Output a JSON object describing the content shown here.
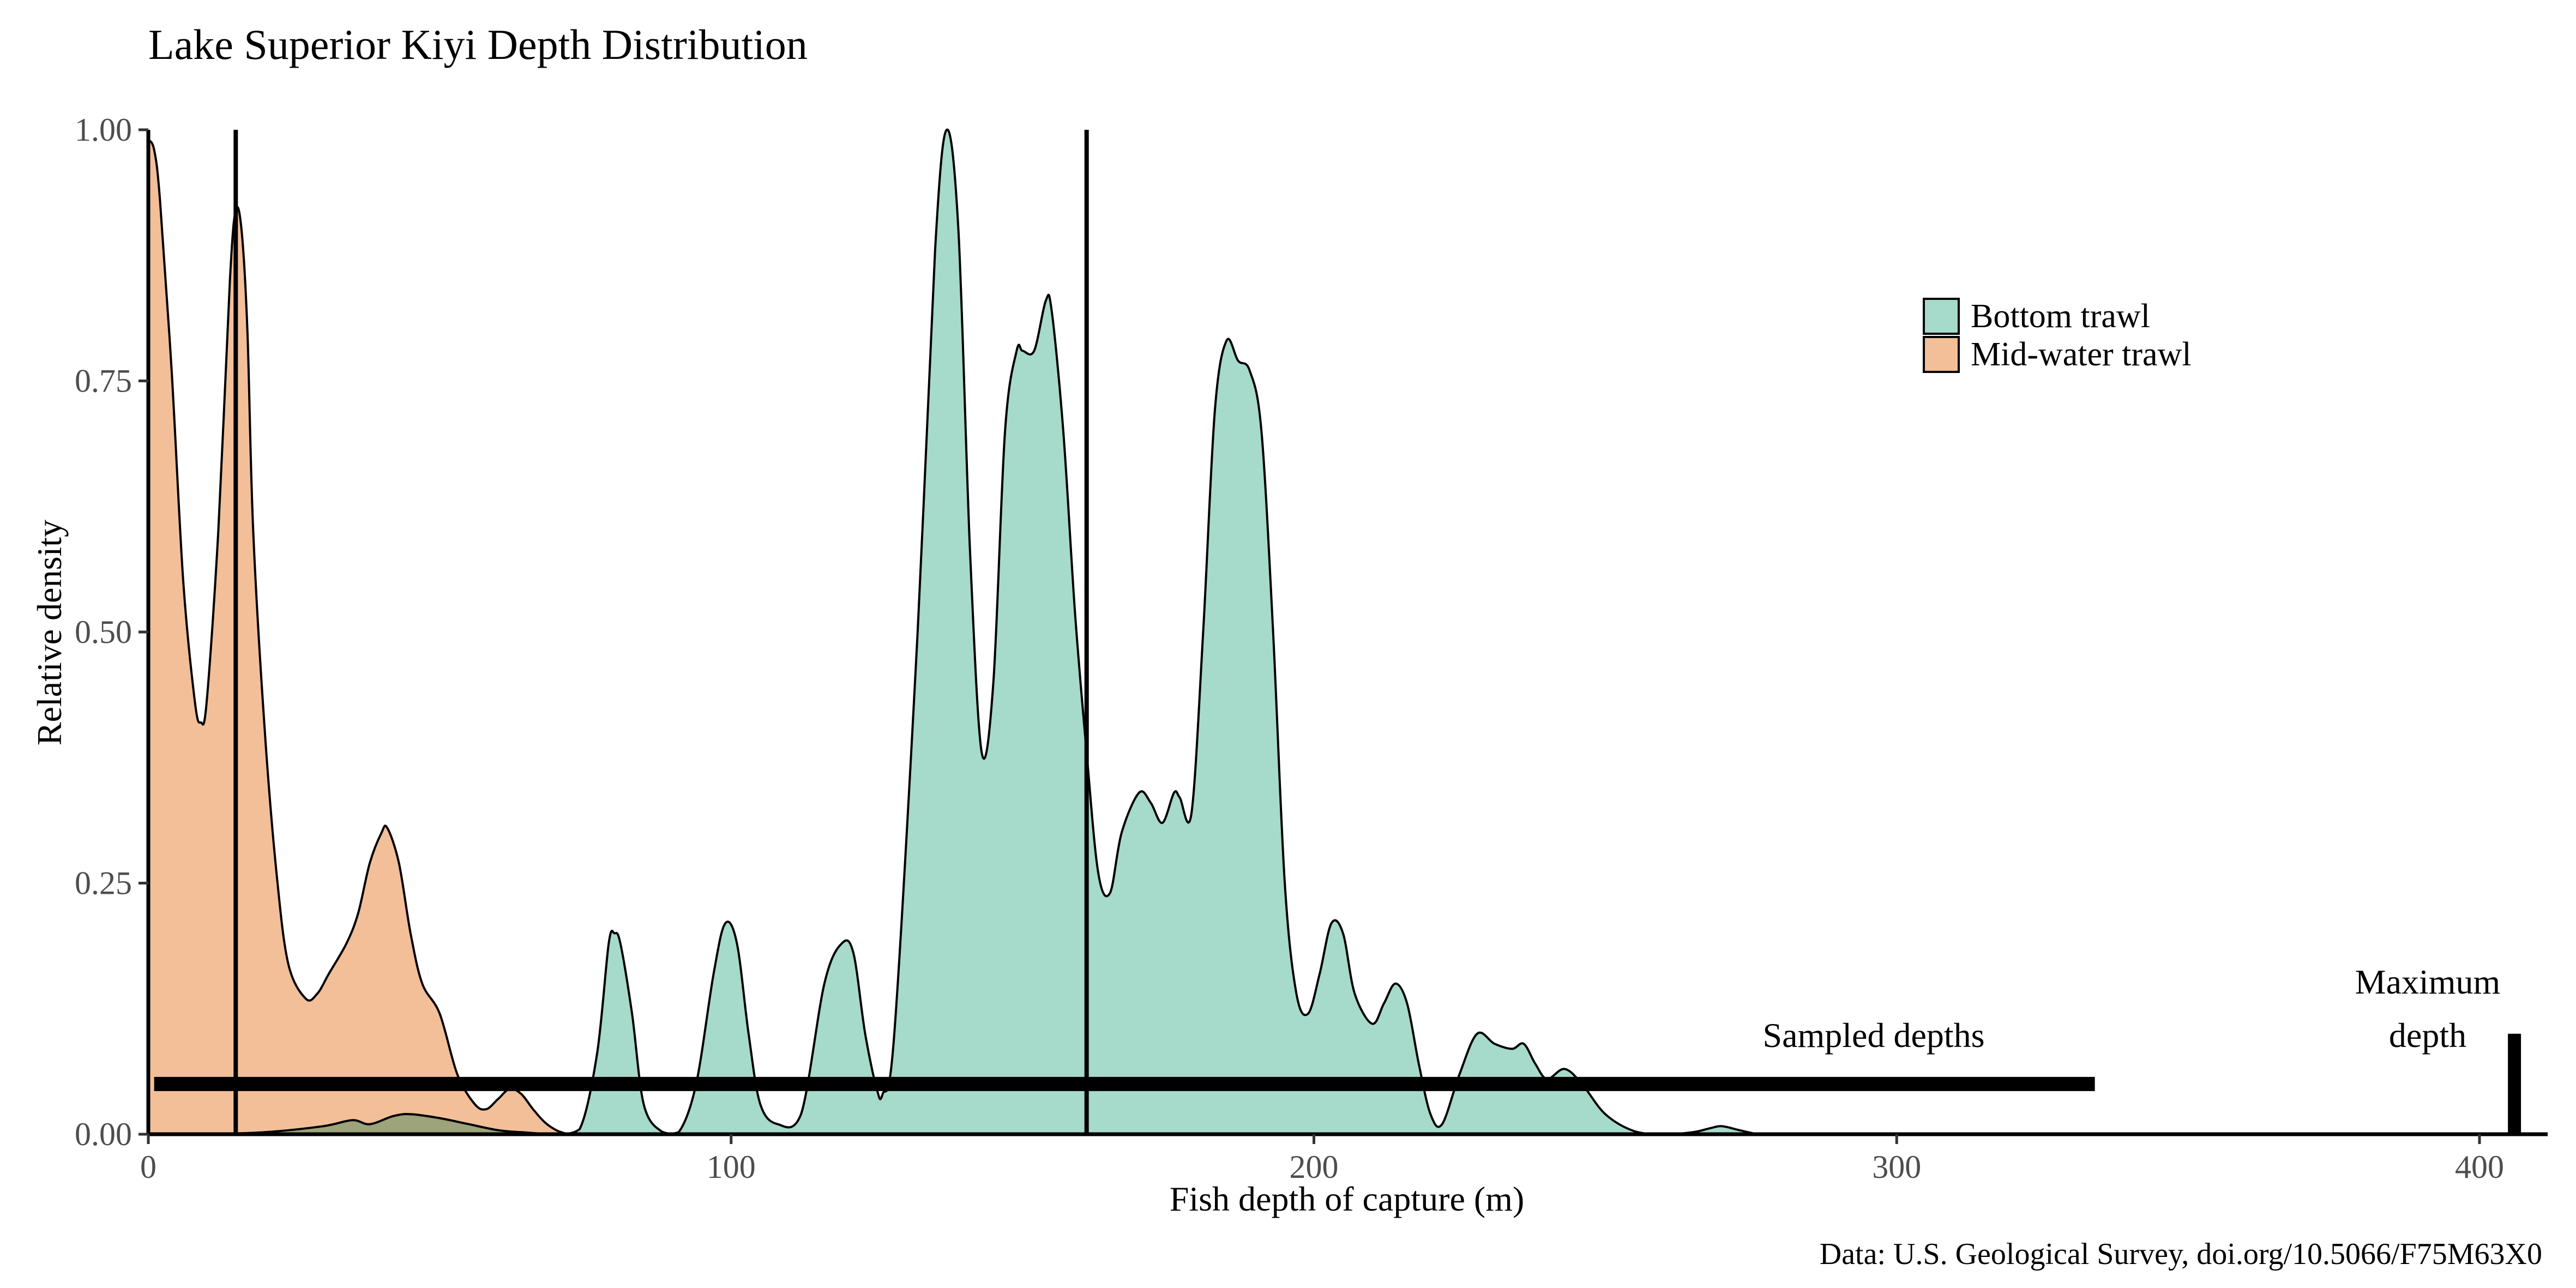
{
  "chart_data": {
    "type": "area",
    "title": "Lake Superior Kiyi Depth Distribution",
    "xlabel": "Fish depth of capture (m)",
    "ylabel": "Relative density",
    "caption": "Data: U.S. Geological Survey, doi.org/10.5066/F75M63X0",
    "xlim": [
      0,
      410
    ],
    "ylim": [
      0,
      1.0
    ],
    "x_ticks": [
      {
        "value": 0,
        "label": "0"
      },
      {
        "value": 100,
        "label": "100"
      },
      {
        "value": 200,
        "label": "200"
      },
      {
        "value": 300,
        "label": "300"
      },
      {
        "value": 400,
        "label": "400"
      }
    ],
    "y_ticks": [
      {
        "value": 0,
        "label": "0.00"
      },
      {
        "value": 0.25,
        "label": "0.25"
      },
      {
        "value": 0.5,
        "label": "0.50"
      },
      {
        "value": 0.75,
        "label": "0.75"
      },
      {
        "value": 1.0,
        "label": "1.00"
      }
    ],
    "grid": false,
    "legend_position": "top-right",
    "series": [
      {
        "name": "Bottom trawl",
        "color": "#a6dacb",
        "points": [
          [
            10,
            0
          ],
          [
            20,
            0.002
          ],
          [
            30,
            0.008
          ],
          [
            35,
            0.014
          ],
          [
            38,
            0.01
          ],
          [
            42,
            0.018
          ],
          [
            45,
            0.02
          ],
          [
            50,
            0.016
          ],
          [
            55,
            0.01
          ],
          [
            60,
            0.004
          ],
          [
            64,
            0.002
          ],
          [
            70,
            0
          ],
          [
            74,
            0.005
          ],
          [
            77,
            0.08
          ],
          [
            79,
            0.19
          ],
          [
            80,
            0.2
          ],
          [
            81,
            0.19
          ],
          [
            83,
            0.12
          ],
          [
            85,
            0.03
          ],
          [
            88,
            0.003
          ],
          [
            91,
            0.002
          ],
          [
            94,
            0.05
          ],
          [
            97,
            0.16
          ],
          [
            99,
            0.21
          ],
          [
            101,
            0.19
          ],
          [
            103,
            0.1
          ],
          [
            105,
            0.03
          ],
          [
            108,
            0.01
          ],
          [
            112,
            0.02
          ],
          [
            116,
            0.15
          ],
          [
            119,
            0.19
          ],
          [
            121,
            0.18
          ],
          [
            123,
            0.1
          ],
          [
            125,
            0.045
          ],
          [
            126,
            0.04
          ],
          [
            128,
            0.1
          ],
          [
            132,
            0.5
          ],
          [
            135,
            0.88
          ],
          [
            137,
            1.0
          ],
          [
            139,
            0.9
          ],
          [
            141,
            0.58
          ],
          [
            143,
            0.38
          ],
          [
            145,
            0.45
          ],
          [
            147,
            0.7
          ],
          [
            149,
            0.78
          ],
          [
            150,
            0.78
          ],
          [
            152,
            0.78
          ],
          [
            154,
            0.83
          ],
          [
            155,
            0.82
          ],
          [
            157,
            0.7
          ],
          [
            159,
            0.52
          ],
          [
            161,
            0.38
          ],
          [
            163,
            0.26
          ],
          [
            165,
            0.24
          ],
          [
            167,
            0.3
          ],
          [
            170,
            0.34
          ],
          [
            172,
            0.33
          ],
          [
            174,
            0.31
          ],
          [
            176,
            0.34
          ],
          [
            177,
            0.335
          ],
          [
            179,
            0.32
          ],
          [
            181,
            0.5
          ],
          [
            183,
            0.72
          ],
          [
            185,
            0.79
          ],
          [
            187,
            0.77
          ],
          [
            189,
            0.76
          ],
          [
            191,
            0.7
          ],
          [
            193,
            0.5
          ],
          [
            195,
            0.25
          ],
          [
            197,
            0.14
          ],
          [
            199,
            0.12
          ],
          [
            201,
            0.16
          ],
          [
            203,
            0.21
          ],
          [
            205,
            0.2
          ],
          [
            207,
            0.14
          ],
          [
            210,
            0.11
          ],
          [
            212,
            0.13
          ],
          [
            214,
            0.15
          ],
          [
            216,
            0.13
          ],
          [
            218,
            0.07
          ],
          [
            220,
            0.02
          ],
          [
            222,
            0.01
          ],
          [
            225,
            0.06
          ],
          [
            228,
            0.1
          ],
          [
            231,
            0.09
          ],
          [
            234,
            0.085
          ],
          [
            236,
            0.09
          ],
          [
            238,
            0.07
          ],
          [
            240,
            0.055
          ],
          [
            243,
            0.065
          ],
          [
            246,
            0.05
          ],
          [
            250,
            0.02
          ],
          [
            255,
            0.003
          ],
          [
            260,
            0.0
          ],
          [
            265,
            0.002
          ],
          [
            268,
            0.006
          ],
          [
            270,
            0.008
          ],
          [
            273,
            0.004
          ],
          [
            276,
            0.0
          ]
        ]
      },
      {
        "name": "Mid-water trawl",
        "color": "#f2bf99",
        "points": [
          [
            0,
            0.99
          ],
          [
            1,
            0.98
          ],
          [
            2,
            0.93
          ],
          [
            4,
            0.76
          ],
          [
            6,
            0.55
          ],
          [
            8,
            0.43
          ],
          [
            9,
            0.41
          ],
          [
            10,
            0.43
          ],
          [
            12,
            0.6
          ],
          [
            14,
            0.85
          ],
          [
            15,
            0.92
          ],
          [
            16,
            0.9
          ],
          [
            17,
            0.8
          ],
          [
            18,
            0.6
          ],
          [
            20,
            0.4
          ],
          [
            22,
            0.26
          ],
          [
            24,
            0.17
          ],
          [
            27,
            0.135
          ],
          [
            29,
            0.14
          ],
          [
            31,
            0.16
          ],
          [
            34,
            0.19
          ],
          [
            36,
            0.22
          ],
          [
            38,
            0.27
          ],
          [
            40,
            0.3
          ],
          [
            41,
            0.305
          ],
          [
            43,
            0.27
          ],
          [
            45,
            0.2
          ],
          [
            47,
            0.15
          ],
          [
            50,
            0.12
          ],
          [
            53,
            0.06
          ],
          [
            56,
            0.03
          ],
          [
            58,
            0.025
          ],
          [
            60,
            0.035
          ],
          [
            62,
            0.045
          ],
          [
            64,
            0.04
          ],
          [
            66,
            0.025
          ],
          [
            68,
            0.012
          ],
          [
            70,
            0.004
          ],
          [
            72,
            0.0
          ]
        ]
      }
    ],
    "vertical_lines": [
      {
        "x": 15
      },
      {
        "x": 161
      }
    ],
    "sampled_depths": {
      "label": "Sampled depths",
      "x_start": 1,
      "x_end": 334,
      "y": 0.05
    },
    "maximum_depth": {
      "label_line1": "Maximum",
      "label_line2": "depth",
      "x": 406,
      "y_top": 0.1
    }
  }
}
